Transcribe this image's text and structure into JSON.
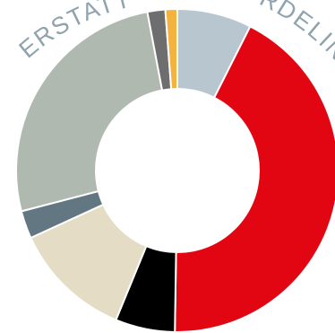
{
  "chart_data": {
    "type": "pie",
    "variant": "donut",
    "title_left": "ERSTATT",
    "title_right": "RDELING",
    "slices": [
      {
        "value": 7.5,
        "color": "#b8c6cf"
      },
      {
        "value": 43.0,
        "color": "#e20613"
      },
      {
        "value": 6.0,
        "color": "#000000"
      },
      {
        "value": 12.0,
        "color": "#e5dcc5"
      },
      {
        "value": 2.8,
        "color": "#627782"
      },
      {
        "value": 26.2,
        "color": "#b0b9b0"
      },
      {
        "value": 1.8,
        "color": "#6e6e6e"
      },
      {
        "value": 1.2,
        "color": "#f3b33d"
      }
    ]
  }
}
